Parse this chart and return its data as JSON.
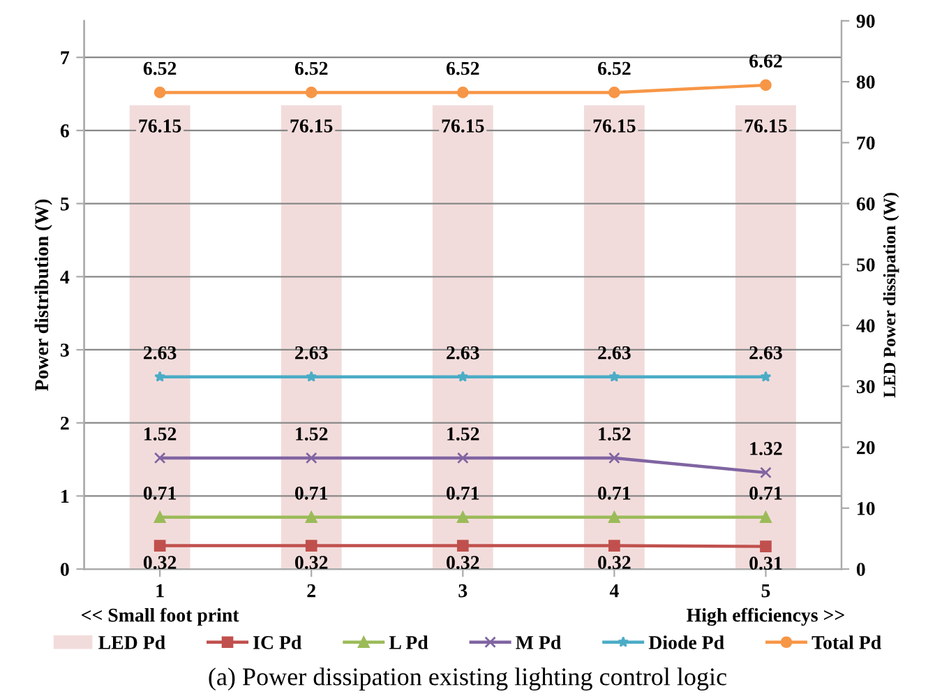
{
  "chart_data": {
    "type": "line",
    "categories": [
      "1",
      "2",
      "3",
      "4",
      "5"
    ],
    "ylabel": "Power distribution (W)",
    "y2label": "LED Power dissipation (W)",
    "ylim": [
      0,
      7.5
    ],
    "yticks": [
      0,
      1,
      2,
      3,
      4,
      5,
      6,
      7
    ],
    "y2lim": [
      0,
      90
    ],
    "y2ticks": [
      0,
      10,
      20,
      30,
      40,
      50,
      60,
      70,
      80,
      90
    ],
    "grid": "y",
    "legend": "bottom",
    "data_labels": true,
    "annotations": [
      "<< Small foot print",
      "High efficiencys >>",
      "(a) Power dissipation existing lighting control logic"
    ],
    "series": [
      {
        "name": "LED Pd",
        "type": "bar",
        "axis": "y2",
        "color": "#f2dcdb",
        "values": [
          76.15,
          76.15,
          76.15,
          76.15,
          76.15
        ]
      },
      {
        "name": "IC Pd",
        "color": "#c0504d",
        "marker": "square",
        "values": [
          0.32,
          0.32,
          0.32,
          0.32,
          0.31
        ]
      },
      {
        "name": "L Pd",
        "color": "#9bbb59",
        "marker": "triangle",
        "values": [
          0.71,
          0.71,
          0.71,
          0.71,
          0.71
        ]
      },
      {
        "name": "M Pd",
        "color": "#8064a2",
        "marker": "cross",
        "values": [
          1.52,
          1.52,
          1.52,
          1.52,
          1.32
        ]
      },
      {
        "name": "Diode Pd",
        "color": "#4bacc6",
        "marker": "star",
        "values": [
          2.63,
          2.63,
          2.63,
          2.63,
          2.63
        ]
      },
      {
        "name": "Total Pd",
        "color": "#f79646",
        "marker": "circle",
        "values": [
          6.52,
          6.52,
          6.52,
          6.52,
          6.62
        ]
      }
    ]
  }
}
